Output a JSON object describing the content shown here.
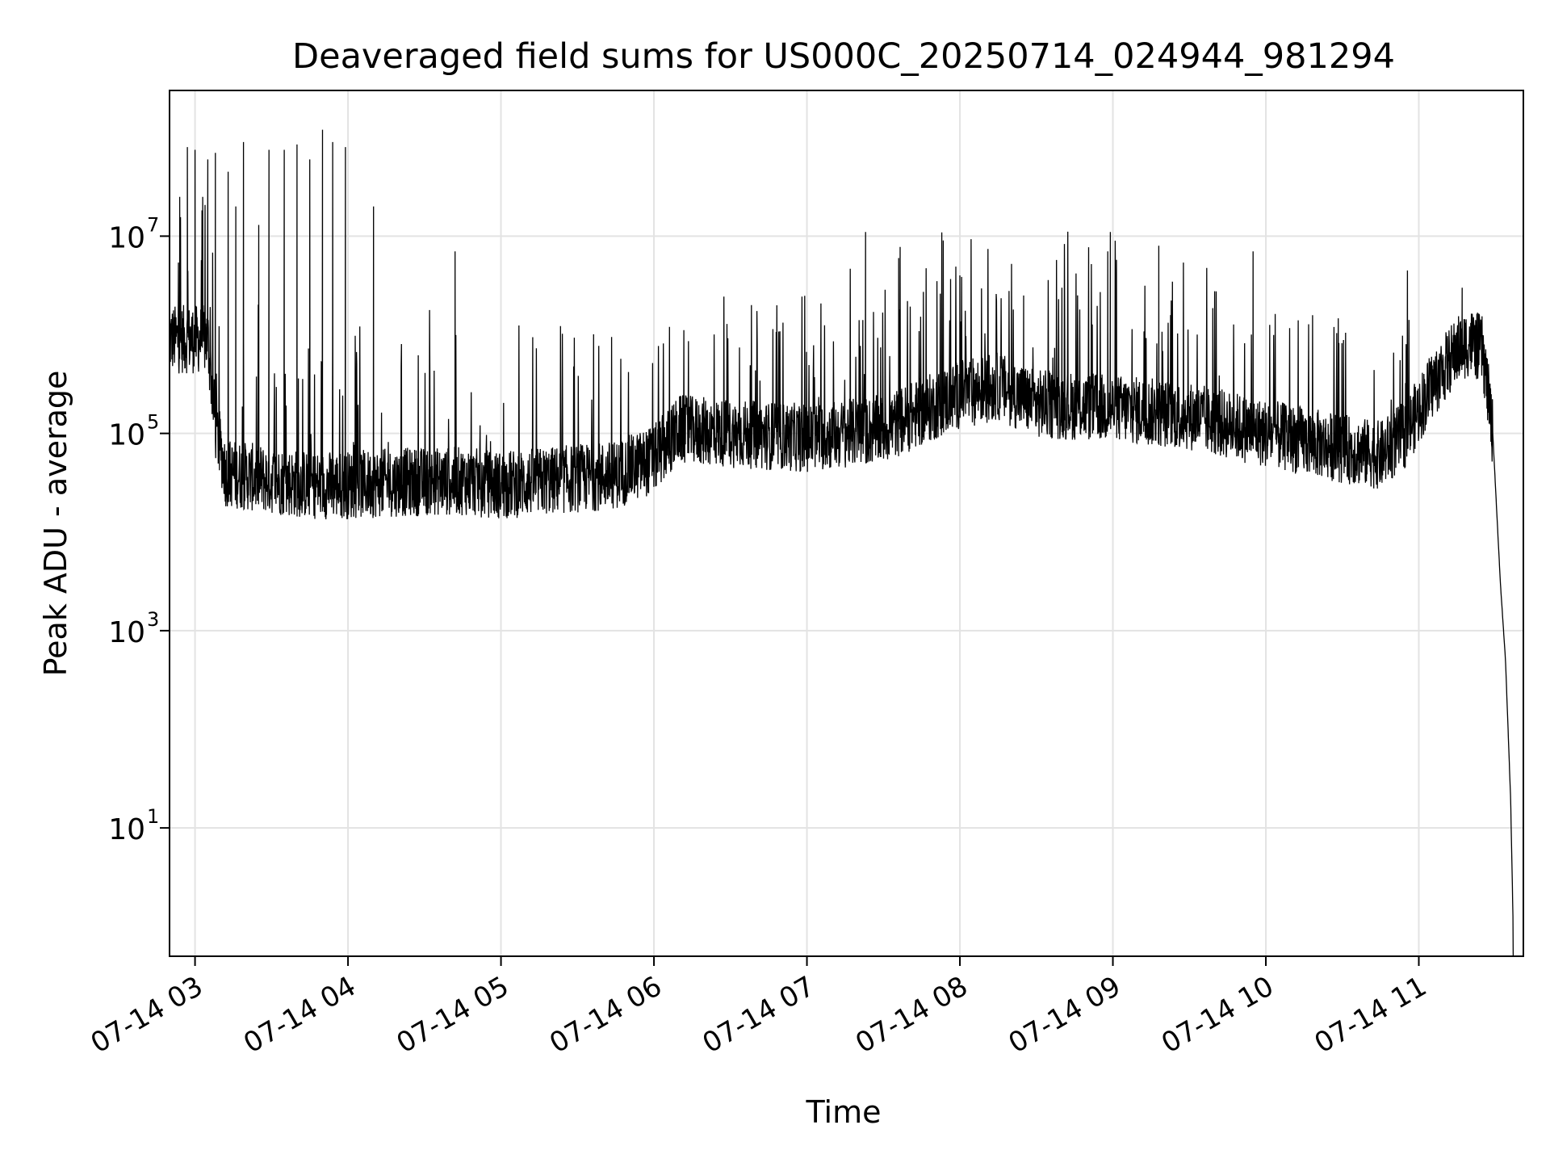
{
  "chart_data": {
    "type": "line",
    "title": "Deaveraged field sums for US000C_20250714_024944_981294",
    "xlabel": "Time",
    "ylabel": "Peak ADU - average",
    "x_unit": "datetime",
    "xlim": [
      "2025-07-14 02:50",
      "2025-07-14 11:41"
    ],
    "ylim": [
      0.5,
      300000000
    ],
    "yscale": "log",
    "grid": true,
    "line_color": "#000000",
    "x_ticks": [
      {
        "x": "2025-07-14 03:00",
        "label": "07-14 03"
      },
      {
        "x": "2025-07-14 04:00",
        "label": "07-14 04"
      },
      {
        "x": "2025-07-14 05:00",
        "label": "07-14 05"
      },
      {
        "x": "2025-07-14 06:00",
        "label": "07-14 06"
      },
      {
        "x": "2025-07-14 07:00",
        "label": "07-14 07"
      },
      {
        "x": "2025-07-14 08:00",
        "label": "07-14 08"
      },
      {
        "x": "2025-07-14 09:00",
        "label": "07-14 09"
      },
      {
        "x": "2025-07-14 10:00",
        "label": "07-14 10"
      },
      {
        "x": "2025-07-14 11:00",
        "label": "07-14 11"
      }
    ],
    "y_ticks": [
      {
        "y": 10,
        "base": "10",
        "exp": "1"
      },
      {
        "y": 1000,
        "base": "10",
        "exp": "3"
      },
      {
        "y": 100000,
        "base": "10",
        "exp": "5"
      },
      {
        "y": 10000000,
        "base": "10",
        "exp": "7"
      }
    ],
    "series": [
      {
        "baseline": [
          [
            "2025-07-14 02:50",
            900000
          ],
          [
            "2025-07-14 03:05",
            900000
          ],
          [
            "2025-07-14 03:08",
            120000
          ],
          [
            "2025-07-14 03:12",
            40000
          ],
          [
            "2025-07-14 03:25",
            35000
          ],
          [
            "2025-07-14 03:45",
            30000
          ],
          [
            "2025-07-14 04:00",
            30000
          ],
          [
            "2025-07-14 04:20",
            32000
          ],
          [
            "2025-07-14 04:45",
            33000
          ],
          [
            "2025-07-14 05:00",
            30000
          ],
          [
            "2025-07-14 05:30",
            35000
          ],
          [
            "2025-07-14 05:45",
            38000
          ],
          [
            "2025-07-14 06:00",
            55000
          ],
          [
            "2025-07-14 06:10",
            110000
          ],
          [
            "2025-07-14 06:30",
            100000
          ],
          [
            "2025-07-14 07:00",
            90000
          ],
          [
            "2025-07-14 07:30",
            110000
          ],
          [
            "2025-07-14 08:00",
            250000
          ],
          [
            "2025-07-14 08:15",
            300000
          ],
          [
            "2025-07-14 08:30",
            200000
          ],
          [
            "2025-07-14 09:00",
            180000
          ],
          [
            "2025-07-14 09:30",
            150000
          ],
          [
            "2025-07-14 10:00",
            100000
          ],
          [
            "2025-07-14 10:30",
            70000
          ],
          [
            "2025-07-14 10:45",
            60000
          ],
          [
            "2025-07-14 10:55",
            100000
          ],
          [
            "2025-07-14 11:05",
            300000
          ],
          [
            "2025-07-14 11:15",
            700000
          ],
          [
            "2025-07-14 11:20",
            850000
          ],
          [
            "2025-07-14 11:25",
            700000
          ],
          [
            "2025-07-14 11:29",
            100000
          ],
          [
            "2025-07-14 11:32",
            3000
          ],
          [
            "2025-07-14 11:34",
            500
          ],
          [
            "2025-07-14 11:36",
            20
          ],
          [
            "2025-07-14 11:37",
            1
          ]
        ],
        "spikes": [
          [
            "2025-07-14 02:54",
            25000000
          ],
          [
            "2025-07-14 02:57",
            80000000
          ],
          [
            "2025-07-14 03:00",
            75000000
          ],
          [
            "2025-07-14 03:03",
            25000000
          ],
          [
            "2025-07-14 03:05",
            60000000
          ],
          [
            "2025-07-14 03:08",
            70000000
          ],
          [
            "2025-07-14 03:13",
            45000000
          ],
          [
            "2025-07-14 03:16",
            20000000
          ],
          [
            "2025-07-14 03:19",
            90000000
          ],
          [
            "2025-07-14 03:25",
            13000000
          ],
          [
            "2025-07-14 03:29",
            75000000
          ],
          [
            "2025-07-14 03:35",
            75000000
          ],
          [
            "2025-07-14 03:40",
            85000000
          ],
          [
            "2025-07-14 03:45",
            60000000
          ],
          [
            "2025-07-14 03:50",
            120000000
          ],
          [
            "2025-07-14 03:54",
            90000000
          ],
          [
            "2025-07-14 03:59",
            80000000
          ],
          [
            "2025-07-14 04:10",
            20000000
          ],
          [
            "2025-07-14 04:42",
            7000000
          ],
          [
            "2025-07-14 07:23",
            11000000
          ],
          [
            "2025-07-14 07:36",
            6000000
          ],
          [
            "2025-07-14 07:51",
            3500000
          ],
          [
            "2025-07-14 08:00",
            4000000
          ],
          [
            "2025-07-14 08:25",
            2500000
          ],
          [
            "2025-07-14 08:40",
            3000000
          ],
          [
            "2025-07-14 08:58",
            7000000
          ],
          [
            "2025-07-14 08:59",
            11000000
          ],
          [
            "2025-07-14 09:18",
            8000000
          ],
          [
            "2025-07-14 09:55",
            7000000
          ],
          [
            "2025-07-14 11:17",
            3000000
          ]
        ]
      }
    ]
  }
}
